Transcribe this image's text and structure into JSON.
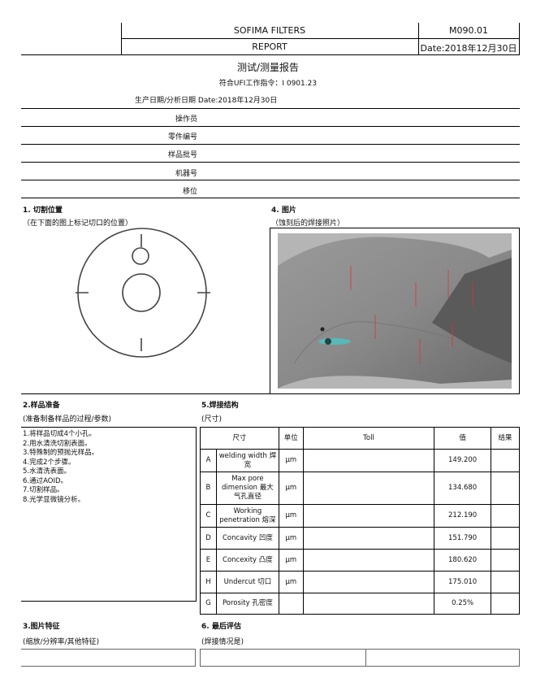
{
  "header": {
    "company": "SOFIMA FILTERS",
    "doc_code": "M090.01",
    "report": "REPORT",
    "date": "Date:2018年12月30日"
  },
  "title": "测试/测量报告",
  "work_order": "符合UFI工作指令：I 0901.23",
  "production_date": "生产日期/分析日期  Date:2018年12月30日",
  "fields": [
    "操作员",
    "零件编号",
    "样品批号",
    "机器号",
    "移位"
  ],
  "sec1": {
    "title": "1. 切割位置",
    "subtitle": "（在下面的图上标记切口的位置）"
  },
  "sec4": {
    "title": "4. 图片",
    "subtitle": "（蚀刻后的焊接照片）"
  },
  "sec2": {
    "title": "2.样品准备",
    "subtitle": "(准备制备样品的过程/参数)",
    "steps": [
      "1.将样品切成4个小孔。",
      " 2.用水清洗切割表面。",
      " 3.特殊制的预抛光样品。",
      " 4.完成2个步骤。",
      " 5.水清洗表面。",
      " 6.通过AOID。",
      " 7.切割样品。",
      " 8.光学显微镜分析。"
    ]
  },
  "sec5": {
    "title": "5.焊接结构",
    "subtitle": "(尺寸)",
    "headers": {
      "size": "尺寸",
      "unit": "单位",
      "toll": "Toll",
      "value": "值",
      "result": "结果"
    },
    "rows": [
      {
        "id": "A",
        "name": "welding width 焊宽",
        "unit": "μm",
        "value": "149.200"
      },
      {
        "id": "B",
        "name": "Max pore dimension 最大气孔直径",
        "unit": "μm",
        "value": "134.680"
      },
      {
        "id": "C",
        "name": "Working penetration 熔深",
        "unit": "μm",
        "value": "212.190"
      },
      {
        "id": "D",
        "name": "Concavity 凹度",
        "unit": "μm",
        "value": "151.790"
      },
      {
        "id": "E",
        "name": "Concexity 凸度",
        "unit": "μm",
        "value": "180.620"
      },
      {
        "id": "H",
        "name": "Undercut 切口",
        "unit": "μm",
        "value": "175.010"
      },
      {
        "id": "G",
        "name": "Porosity  孔密度",
        "unit": "",
        "value": "0.25%"
      }
    ]
  },
  "sec3": {
    "title": "3.图片特征",
    "subtitle": "(缩放/分辨率/其他特征)"
  },
  "sec6": {
    "title": "6. 最后评估",
    "subtitle": "(焊接情况是)"
  }
}
